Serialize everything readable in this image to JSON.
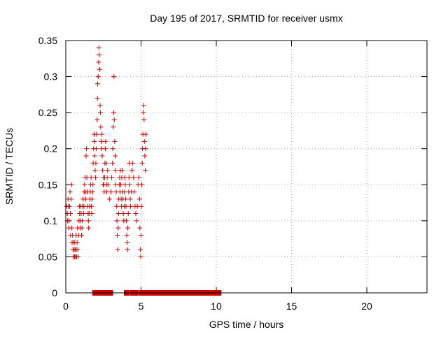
{
  "chart_data": {
    "type": "scatter",
    "title": "Day 195 of 2017, SRMTID for receiver usmx",
    "xlabel": "GPS time / hours",
    "ylabel": "SRMTID / TECUs",
    "xlim": [
      0,
      24
    ],
    "ylim": [
      0,
      0.35
    ],
    "x_ticks": [
      0,
      5,
      10,
      15,
      20
    ],
    "y_ticks": [
      0,
      0.05,
      0.1,
      0.15,
      0.2,
      0.25,
      0.3,
      0.35
    ],
    "x_tick_labels": [
      "0",
      "5",
      "10",
      "15",
      "20"
    ],
    "y_tick_labels": [
      "0",
      "0.05",
      "0.1",
      "0.15",
      "0.2",
      "0.25",
      "0.3",
      "0.35"
    ],
    "grid": true,
    "grid_style": "dotted",
    "legend": "none",
    "marker": "+",
    "series": [
      {
        "color": "#cc0000",
        "points": [
          [
            0.05,
            0.12
          ],
          [
            0.1,
            0.11
          ],
          [
            0.12,
            0.1
          ],
          [
            0.15,
            0.13
          ],
          [
            0.18,
            0.12
          ],
          [
            0.2,
            0.09
          ],
          [
            0.22,
            0.1
          ],
          [
            0.25,
            0.12
          ],
          [
            0.28,
            0.14
          ],
          [
            0.3,
            0.11
          ],
          [
            0.32,
            0.08
          ],
          [
            0.35,
            0.13
          ],
          [
            0.38,
            0.15
          ],
          [
            0.4,
            0.09
          ],
          [
            0.42,
            0.07
          ],
          [
            0.45,
            0.08
          ],
          [
            0.48,
            0.06
          ],
          [
            0.5,
            0.05
          ],
          [
            0.52,
            0.07
          ],
          [
            0.55,
            0.06
          ],
          [
            0.58,
            0.05
          ],
          [
            0.6,
            0.07
          ],
          [
            0.62,
            0.06
          ],
          [
            0.65,
            0.05
          ],
          [
            0.68,
            0.08
          ],
          [
            0.7,
            0.06
          ],
          [
            0.72,
            0.05
          ],
          [
            0.75,
            0.07
          ],
          [
            0.78,
            0.09
          ],
          [
            0.8,
            0.06
          ],
          [
            0.82,
            0.05
          ],
          [
            0.85,
            0.08
          ],
          [
            0.88,
            0.1
          ],
          [
            0.9,
            0.12
          ],
          [
            0.92,
            0.11
          ],
          [
            0.95,
            0.09
          ],
          [
            0.98,
            0.1
          ],
          [
            1.0,
            0.12
          ],
          [
            1.02,
            0.11
          ],
          [
            1.05,
            0.08
          ],
          [
            1.08,
            0.09
          ],
          [
            1.1,
            0.1
          ],
          [
            1.12,
            0.12
          ],
          [
            1.15,
            0.13
          ],
          [
            1.18,
            0.11
          ],
          [
            1.2,
            0.12
          ],
          [
            1.22,
            0.14
          ],
          [
            1.25,
            0.15
          ],
          [
            1.28,
            0.16
          ],
          [
            1.3,
            0.14
          ],
          [
            1.32,
            0.13
          ],
          [
            1.35,
            0.19
          ],
          [
            1.38,
            0.2
          ],
          [
            1.4,
            0.16
          ],
          [
            1.42,
            0.14
          ],
          [
            1.45,
            0.12
          ],
          [
            1.48,
            0.11
          ],
          [
            1.5,
            0.1
          ],
          [
            1.52,
            0.09
          ],
          [
            1.55,
            0.11
          ],
          [
            1.58,
            0.12
          ],
          [
            1.6,
            0.13
          ],
          [
            1.62,
            0.14
          ],
          [
            1.65,
            0.15
          ],
          [
            1.68,
            0.16
          ],
          [
            1.7,
            0.12
          ],
          [
            1.72,
            0.11
          ],
          [
            1.75,
            0.13
          ],
          [
            1.78,
            0.14
          ],
          [
            1.8,
            0.15
          ],
          [
            1.82,
            0.18
          ],
          [
            1.85,
            0.2
          ],
          [
            1.88,
            0.22
          ],
          [
            1.9,
            0.21
          ],
          [
            1.92,
            0.19
          ],
          [
            1.95,
            0.17
          ],
          [
            1.98,
            0.16
          ],
          [
            2.0,
            0.18
          ],
          [
            2.02,
            0.2
          ],
          [
            2.05,
            0.22
          ],
          [
            2.08,
            0.24
          ],
          [
            2.1,
            0.27
          ],
          [
            2.12,
            0.29
          ],
          [
            2.15,
            0.3
          ],
          [
            2.18,
            0.32
          ],
          [
            2.2,
            0.34
          ],
          [
            2.22,
            0.33
          ],
          [
            2.25,
            0.31
          ],
          [
            2.28,
            0.26
          ],
          [
            2.3,
            0.25
          ],
          [
            2.32,
            0.23
          ],
          [
            2.35,
            0.21
          ],
          [
            2.38,
            0.2
          ],
          [
            2.4,
            0.22
          ],
          [
            2.42,
            0.19
          ],
          [
            2.45,
            0.17
          ],
          [
            2.48,
            0.15
          ],
          [
            2.5,
            0.16
          ],
          [
            2.52,
            0.15
          ],
          [
            2.55,
            0.14
          ],
          [
            2.58,
            0.16
          ],
          [
            2.6,
            0.18
          ],
          [
            2.62,
            0.2
          ],
          [
            2.65,
            0.21
          ],
          [
            2.68,
            0.18
          ],
          [
            2.7,
            0.15
          ],
          [
            2.72,
            0.14
          ],
          [
            2.75,
            0.16
          ],
          [
            2.78,
            0.17
          ],
          [
            2.8,
            0.15
          ],
          [
            2.9,
            0.13
          ],
          [
            3.0,
            0.14
          ],
          [
            3.05,
            0.16
          ],
          [
            3.1,
            0.18
          ],
          [
            3.12,
            0.2
          ],
          [
            3.15,
            0.23
          ],
          [
            3.18,
            0.25
          ],
          [
            3.2,
            0.3
          ],
          [
            3.22,
            0.24
          ],
          [
            3.25,
            0.21
          ],
          [
            3.28,
            0.19
          ],
          [
            3.3,
            0.17
          ],
          [
            3.32,
            0.15
          ],
          [
            3.35,
            0.14
          ],
          [
            3.38,
            0.12
          ],
          [
            3.4,
            0.1
          ],
          [
            3.42,
            0.08
          ],
          [
            3.45,
            0.06
          ],
          [
            3.48,
            0.09
          ],
          [
            3.5,
            0.11
          ],
          [
            3.52,
            0.13
          ],
          [
            3.55,
            0.15
          ],
          [
            3.58,
            0.16
          ],
          [
            3.6,
            0.14
          ],
          [
            3.62,
            0.17
          ],
          [
            3.65,
            0.15
          ],
          [
            3.68,
            0.13
          ],
          [
            3.7,
            0.12
          ],
          [
            3.72,
            0.16
          ],
          [
            3.75,
            0.17
          ],
          [
            3.78,
            0.14
          ],
          [
            3.8,
            0.13
          ],
          [
            3.82,
            0.11
          ],
          [
            3.85,
            0.1
          ],
          [
            3.88,
            0.12
          ],
          [
            3.9,
            0.14
          ],
          [
            3.92,
            0.16
          ],
          [
            3.95,
            0.15
          ],
          [
            3.98,
            0.13
          ],
          [
            4.0,
            0.12
          ],
          [
            4.02,
            0.1
          ],
          [
            4.05,
            0.08
          ],
          [
            4.08,
            0.07
          ],
          [
            4.1,
            0.06
          ],
          [
            4.12,
            0.09
          ],
          [
            4.15,
            0.11
          ],
          [
            4.18,
            0.14
          ],
          [
            4.2,
            0.16
          ],
          [
            4.22,
            0.18
          ],
          [
            4.25,
            0.15
          ],
          [
            4.28,
            0.13
          ],
          [
            4.3,
            0.12
          ],
          [
            4.35,
            0.14
          ],
          [
            4.4,
            0.17
          ],
          [
            4.45,
            0.18
          ],
          [
            4.5,
            0.16
          ],
          [
            4.55,
            0.14
          ],
          [
            4.6,
            0.12
          ],
          [
            4.65,
            0.11
          ],
          [
            4.7,
            0.1
          ],
          [
            4.75,
            0.12
          ],
          [
            4.8,
            0.15
          ],
          [
            4.85,
            0.16
          ],
          [
            4.9,
            0.13
          ],
          [
            4.92,
            0.09
          ],
          [
            4.95,
            0.06
          ],
          [
            4.98,
            0.05
          ],
          [
            5.0,
            0.08
          ],
          [
            5.02,
            0.12
          ],
          [
            5.05,
            0.15
          ],
          [
            5.08,
            0.18
          ],
          [
            5.1,
            0.2
          ],
          [
            5.12,
            0.22
          ],
          [
            5.15,
            0.25
          ],
          [
            5.18,
            0.26
          ],
          [
            5.2,
            0.24
          ],
          [
            5.22,
            0.21
          ],
          [
            5.25,
            0.19
          ],
          [
            5.28,
            0.17
          ],
          [
            5.3,
            0.2
          ],
          [
            5.32,
            0.22
          ]
        ]
      }
    ],
    "zero_band": {
      "y": 0,
      "segments": [
        [
          1.9,
          2.0
        ],
        [
          2.2,
          2.3
        ],
        [
          2.4,
          2.5
        ],
        [
          2.6,
          3.0
        ],
        [
          4.0,
          4.1
        ],
        [
          4.4,
          4.7
        ],
        [
          5.0,
          10.2
        ]
      ]
    }
  }
}
